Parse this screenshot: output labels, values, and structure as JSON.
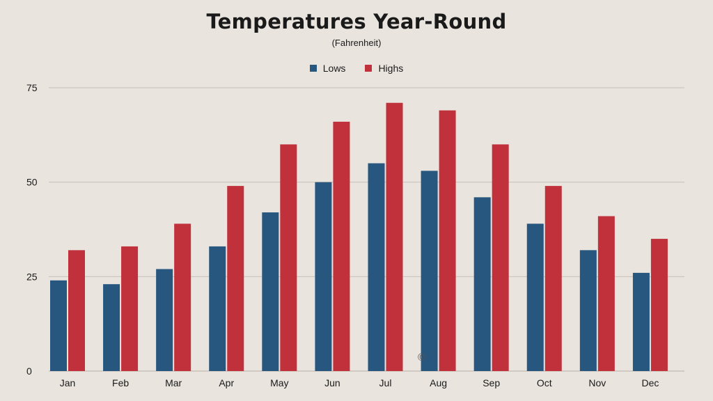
{
  "colors": {
    "lows": "#27567f",
    "highs": "#c0313b",
    "grid": "#c8c0b8",
    "background": "#e9e4de"
  },
  "copyright": "©",
  "chart_data": {
    "type": "bar",
    "title": "Temperatures Year-Round",
    "subtitle": "(Fahrenheit)",
    "xlabel": "",
    "ylabel": "",
    "categories": [
      "Jan",
      "Feb",
      "Mar",
      "Apr",
      "May",
      "Jun",
      "Jul",
      "Aug",
      "Sep",
      "Oct",
      "Nov",
      "Dec"
    ],
    "series": [
      {
        "name": "Lows",
        "color": "#27567f",
        "values": [
          24,
          23,
          27,
          33,
          42,
          50,
          55,
          53,
          46,
          39,
          32,
          26
        ]
      },
      {
        "name": "Highs",
        "color": "#c0313b",
        "values": [
          32,
          33,
          39,
          49,
          60,
          66,
          71,
          69,
          60,
          49,
          41,
          35
        ]
      }
    ],
    "ylim": [
      0,
      75
    ],
    "yticks": [
      0,
      25,
      50,
      75
    ],
    "grid": true,
    "legend": "top-center"
  }
}
